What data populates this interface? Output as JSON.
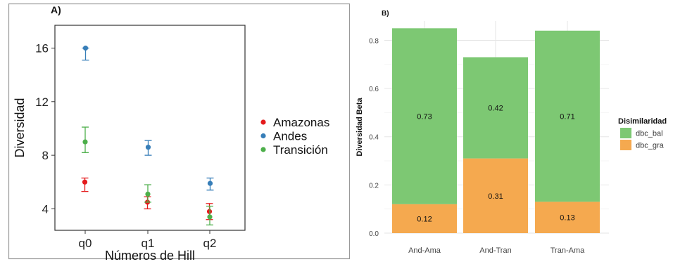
{
  "chart_data": [
    {
      "type": "scatter",
      "panel_label": "A)",
      "xlabel": "Números de Hill",
      "ylabel": "Diversidad",
      "categories": [
        "q0",
        "q1",
        "q2"
      ],
      "y_ticks": [
        4,
        8,
        12,
        16
      ],
      "ylim": [
        2.4,
        17.7
      ],
      "grid": false,
      "legend_position": "right",
      "series": [
        {
          "name": "Amazonas",
          "color": "#e41a1c",
          "values": [
            6.0,
            4.5,
            3.8
          ],
          "lower": [
            5.3,
            4.0,
            3.2
          ],
          "upper": [
            6.3,
            4.9,
            4.4
          ]
        },
        {
          "name": "Andes",
          "color": "#377eb8",
          "values": [
            16.0,
            8.6,
            5.9
          ],
          "lower": [
            15.1,
            8.0,
            5.4
          ],
          "upper": [
            16.0,
            9.1,
            6.3
          ]
        },
        {
          "name": "Transición",
          "color": "#4daf4a",
          "values": [
            9.0,
            5.1,
            3.4
          ],
          "lower": [
            8.2,
            4.5,
            2.8
          ],
          "upper": [
            10.1,
            5.8,
            4.2
          ]
        }
      ]
    },
    {
      "type": "bar",
      "stacked": true,
      "panel_label": "B)",
      "ylabel": "Diversidad Beta",
      "categories": [
        "And-Ama",
        "And-Tran",
        "Tran-Ama"
      ],
      "y_ticks": [
        "0.0",
        "0.2",
        "0.4",
        "0.6",
        "0.8"
      ],
      "ylim": [
        0,
        0.88
      ],
      "grid": true,
      "legend_title": "Disimilaridad",
      "legend_position": "right",
      "series": [
        {
          "name": "dbc_gra",
          "color": "#f5a94f",
          "values": [
            0.12,
            0.31,
            0.13
          ],
          "labels": [
            "0.12",
            "0.31",
            "0.13"
          ]
        },
        {
          "name": "dbc_bal",
          "color": "#7dc873",
          "values": [
            0.73,
            0.42,
            0.71
          ],
          "labels": [
            "0.73",
            "0.42",
            "0.71"
          ]
        }
      ],
      "legend_order": [
        "dbc_bal",
        "dbc_gra"
      ]
    }
  ]
}
